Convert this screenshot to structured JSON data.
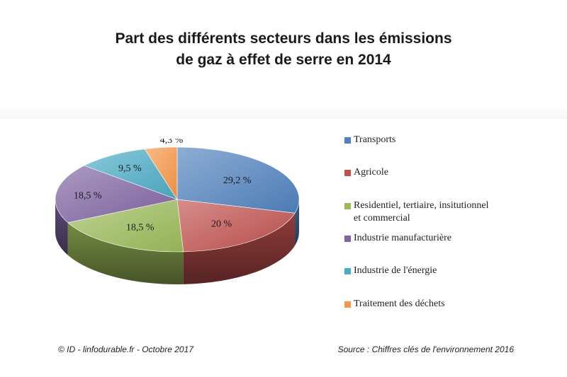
{
  "title_lines": [
    "Part des différents secteurs dans les émissions",
    "de gaz à effet de serre en 2014"
  ],
  "chart_data": {
    "type": "pie",
    "style": "3d",
    "categories": [
      "Transports",
      "Agricole",
      "Residentiel, tertiaire, insitutionnel et commercial",
      "Industrie manufacturière",
      "Industrie de l'énergie",
      "Traitement des déchets"
    ],
    "values": [
      29.2,
      20,
      18.5,
      18.5,
      9.5,
      4.3
    ],
    "data_labels": [
      "29,2 %",
      "20 %",
      "18,5 %",
      "18,5 %",
      "9,5 %",
      "4,3 %"
    ],
    "colors": [
      "#4f81bd",
      "#c0504d",
      "#9bbb59",
      "#8064a2",
      "#4bacc6",
      "#f79646"
    ],
    "legend_position": "right"
  },
  "legend_lines": [
    [
      "Transports"
    ],
    [
      "Agricole"
    ],
    [
      "Residentiel, tertiaire, insitutionnel",
      "et commercial"
    ],
    [
      "Industrie manufacturière"
    ],
    [
      "Industrie de l'énergie"
    ],
    [
      "Traitement des déchets"
    ]
  ],
  "footer": {
    "credit": "© ID - linfodurable.fr - Octobre 2017",
    "source": "Source : Chiffres clés de l'environnement 2016"
  }
}
